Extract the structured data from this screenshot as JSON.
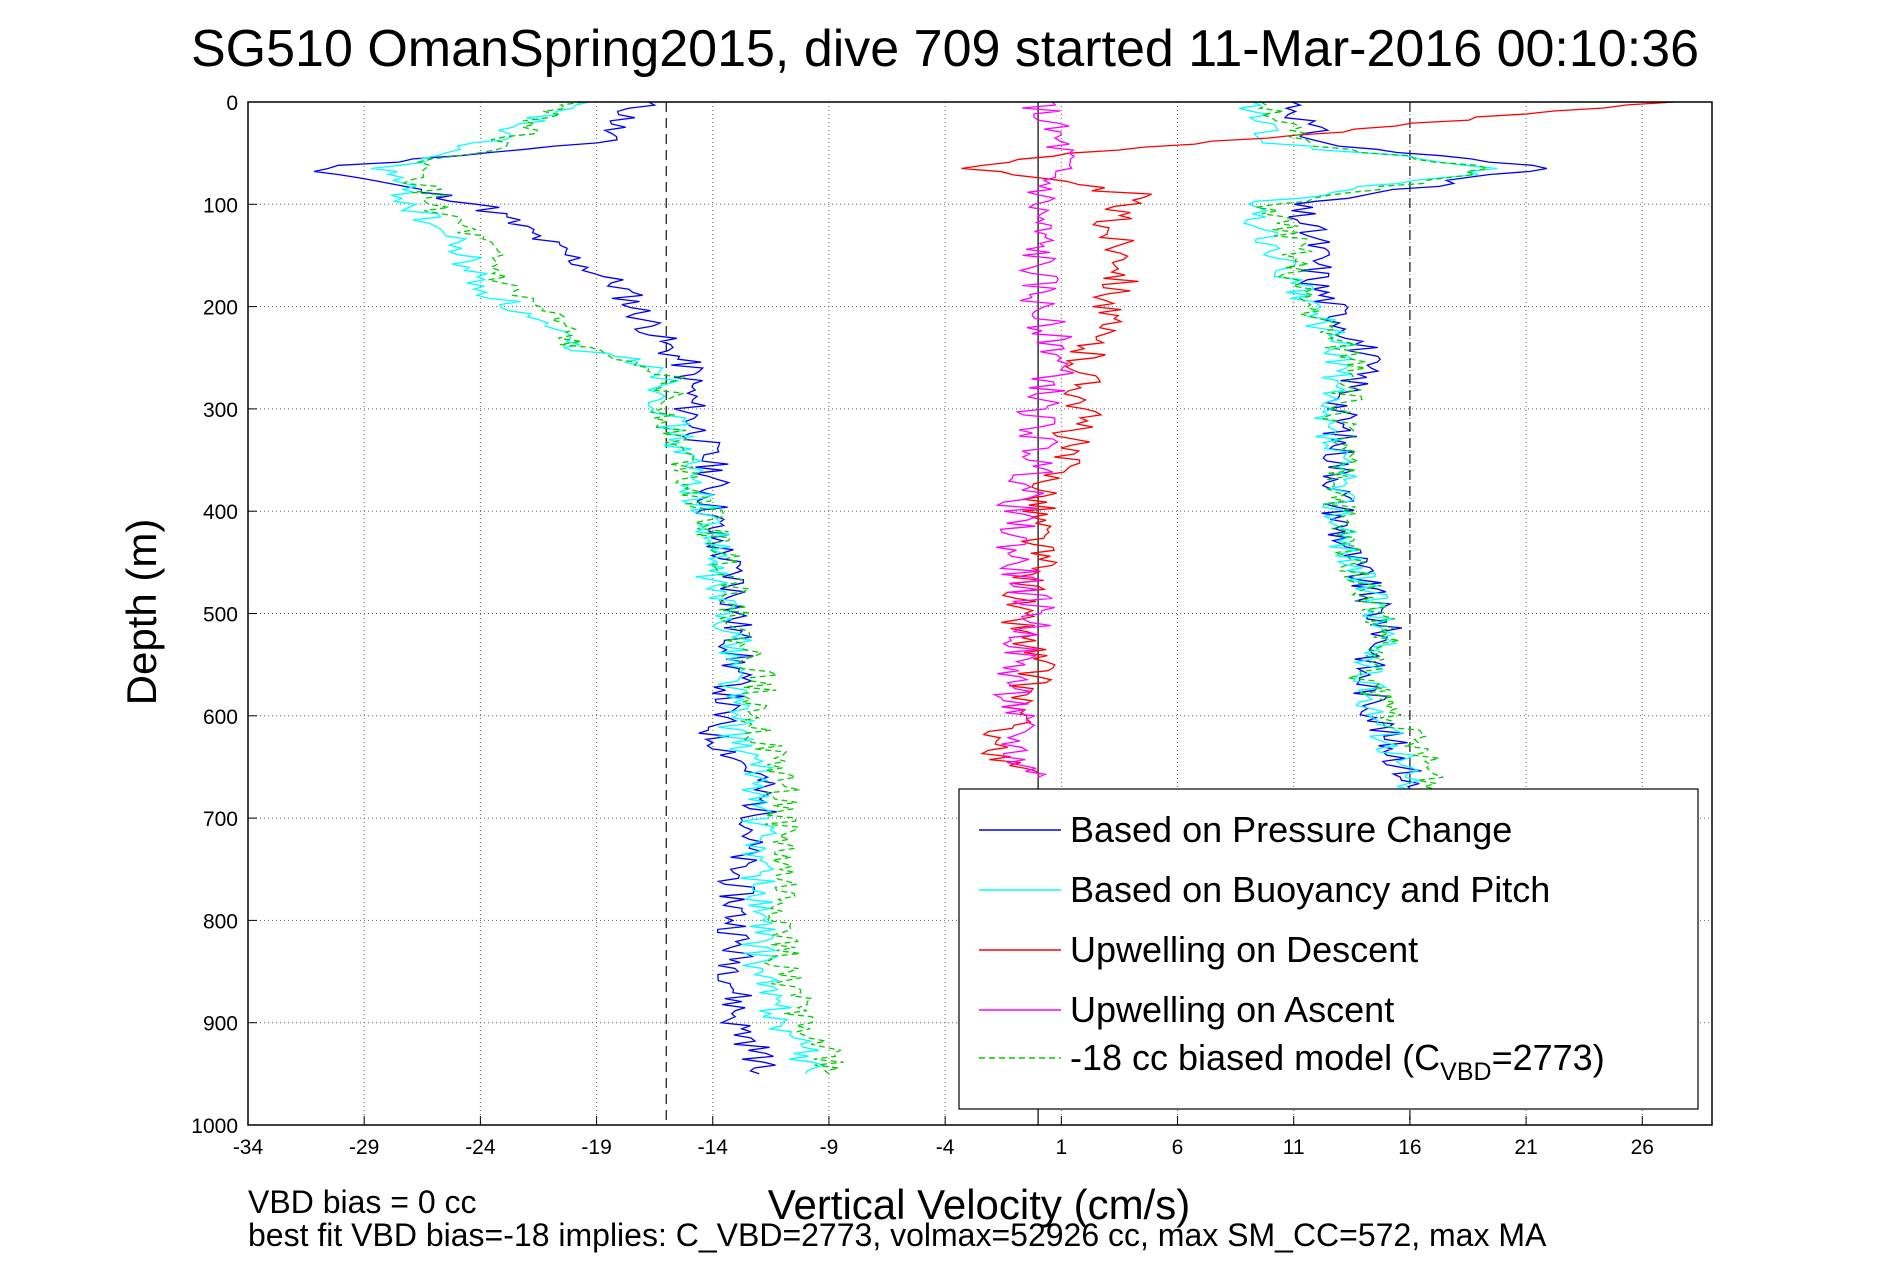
{
  "chart_data": {
    "type": "line",
    "title": "SG510 OmanSpring2015, dive 709 started 11-Mar-2016 00:10:36",
    "xlabel": "Vertical Velocity (cm/s)",
    "ylabel": "Depth (m)",
    "xlim": [
      -34,
      29
    ],
    "ylim": [
      0,
      1000
    ],
    "y_reversed": true,
    "grid": true,
    "xticks": [
      -34,
      -29,
      -24,
      -19,
      -14,
      -9,
      -4,
      1,
      6,
      11,
      16,
      21,
      26
    ],
    "yticks": [
      0,
      100,
      200,
      300,
      400,
      500,
      600,
      700,
      800,
      900,
      1000
    ],
    "reference_lines": {
      "solid_x": 0,
      "dashed_x": [
        -16,
        16
      ]
    },
    "legend_position": "bottom-right",
    "series": [
      {
        "name": "Based on Pressure Change",
        "color": "#0000ff",
        "depth": [
          0,
          40,
          65,
          100,
          140,
          180,
          210,
          240,
          260,
          300,
          360,
          420,
          470,
          520,
          560,
          620,
          660,
          700,
          750,
          800,
          850,
          900,
          930,
          950
        ],
        "descent": [
          -17,
          -19,
          -31,
          -24,
          -21,
          -18,
          -17,
          -16,
          -15,
          -15,
          -14,
          -14,
          -13,
          -13,
          -13,
          -14,
          -12,
          -12,
          -13,
          -13,
          -13,
          -13,
          -12,
          -12
        ],
        "ascent": [
          11,
          12,
          22,
          11,
          12,
          12,
          13,
          14,
          14,
          13,
          13,
          13,
          14,
          15,
          14,
          15,
          16,
          16
        ]
      },
      {
        "name": "Based on Buoyancy and Pitch",
        "color": "#00ffff",
        "depth": [
          0,
          40,
          65,
          100,
          140,
          180,
          210,
          240,
          260,
          300,
          360,
          420,
          470,
          520,
          560,
          620,
          660,
          700,
          750,
          800,
          850,
          900,
          930,
          950
        ],
        "descent": [
          -20,
          -24,
          -28,
          -27,
          -25,
          -24,
          -22,
          -20,
          -16,
          -16,
          -15,
          -14,
          -14,
          -13,
          -13,
          -13,
          -12,
          -12,
          -12,
          -12,
          -12,
          -11,
          -10,
          -10
        ],
        "ascent": [
          9,
          10,
          20,
          9,
          10,
          11,
          12,
          13,
          13,
          12,
          13,
          13,
          14,
          15,
          14,
          15,
          16,
          16
        ]
      },
      {
        "name": "Upwelling on Descent",
        "color": "#ff0000",
        "depth": [
          0,
          50,
          65,
          90,
          120,
          160,
          200,
          250,
          300,
          350,
          400,
          450,
          500,
          550,
          600,
          640,
          660
        ],
        "values": [
          27,
          2,
          -3,
          4,
          3,
          4,
          3,
          2,
          2,
          1,
          0,
          0,
          -1,
          0,
          -1,
          -2,
          0
        ]
      },
      {
        "name": "Upwelling on Ascent",
        "color": "#ff00ff",
        "depth": [
          0,
          50,
          100,
          150,
          200,
          250,
          300,
          350,
          400,
          450,
          500,
          550,
          600,
          640,
          660
        ],
        "values": [
          0,
          1,
          0,
          0,
          0,
          1,
          0,
          0,
          -1,
          -1,
          0,
          -1,
          -1,
          -1,
          0
        ]
      },
      {
        "name": "-18 cc biased model",
        "legend_label": "-18 cc biased model (C",
        "legend_sub": "VBD",
        "legend_tail": "=2773)",
        "color": "#00cc00",
        "dashed": true,
        "depth": [
          0,
          40,
          65,
          100,
          140,
          180,
          210,
          240,
          260,
          300,
          360,
          420,
          470,
          520,
          560,
          620,
          660,
          700,
          750,
          800,
          850,
          900,
          930,
          950
        ],
        "descent": [
          -20,
          -23,
          -27,
          -26,
          -24,
          -23,
          -21,
          -20,
          -16,
          -16,
          -15,
          -14,
          -13,
          -13,
          -12,
          -12,
          -11,
          -11,
          -11,
          -11,
          -11,
          -10,
          -9,
          -9
        ],
        "ascent": [
          10,
          11,
          20,
          10,
          11,
          11,
          12,
          13,
          14,
          13,
          13,
          13,
          14,
          15,
          14,
          16,
          17,
          17
        ]
      }
    ]
  },
  "annotations": {
    "line1": "VBD bias = 0 cc",
    "line2": "best fit VBD bias=-18 implies: C_VBD=2773, volmax=52926 cc, max SM_CC=572, max MA"
  }
}
